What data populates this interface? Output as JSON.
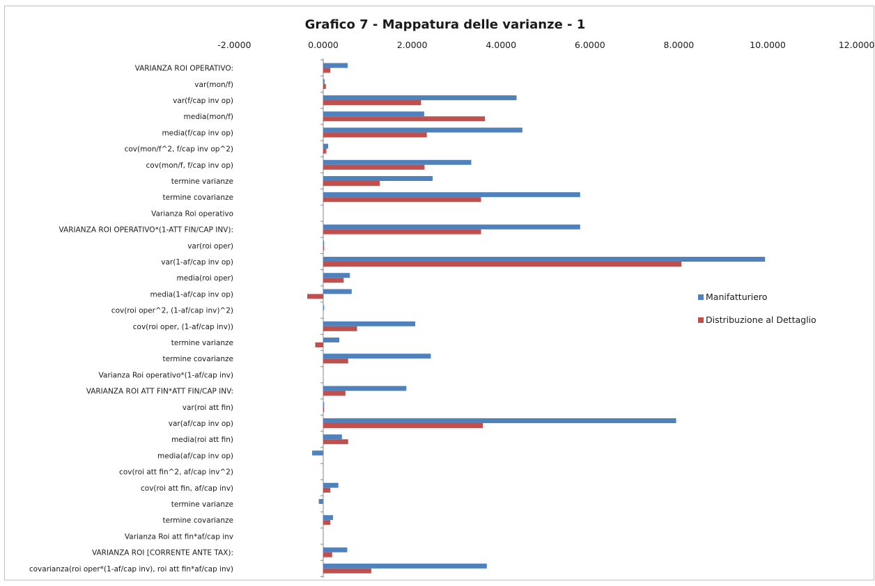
{
  "chart_data": {
    "type": "bar",
    "orientation": "horizontal",
    "title": "Grafico 7 - Mappatura delle varianze - 1",
    "xlim": [
      -2,
      12
    ],
    "x_ticks": [
      "-2.0000",
      "0.0000",
      "2.0000",
      "4.0000",
      "6.0000",
      "8.0000",
      "10.0000",
      "12.0000"
    ],
    "x_tick_values": [
      -2,
      0,
      2,
      4,
      6,
      8,
      10,
      12
    ],
    "x_axis_position": "top",
    "gridlines": false,
    "legend_position": "right",
    "categories": [
      "VARIANZA ROI OPERATIVO:",
      "var(mon/f)",
      "var(f/cap inv op)",
      "media(mon/f)",
      "media(f/cap inv op)",
      "cov(mon/f^2, f/cap inv op^2)",
      "cov(mon/f, f/cap inv op)",
      "termine varianze",
      "termine covarianze",
      "Varianza Roi operativo",
      "VARIANZA ROI OPERATIVO*(1-ATT FIN/CAP INV):",
      "var(roi oper)",
      "var(1-af/cap inv op)",
      "media(roi oper)",
      "media(1-af/cap inv op)",
      "cov(roi oper^2, (1-af/cap inv)^2)",
      "cov(roi oper, (1-af/cap inv))",
      "termine varianze",
      "termine covarianze",
      "Varianza Roi operativo*(1-af/cap inv)",
      "VARIANZA ROI ATT FIN*ATT FIN/CAP INV:",
      "var(roi att fin)",
      "var(af/cap inv op)",
      "media(roi att fin)",
      "media(af/cap inv op)",
      "cov(roi att fin^2, af/cap inv^2)",
      "cov(roi att fin, af/cap inv)",
      "termine varianze",
      "termine covarianze",
      "Varianza Roi att fin*af/cap inv",
      "VARIANZA ROI [CORRENTE ANTE TAX):",
      "covarianza(roi oper*(1-af/cap inv), roi att fin*af/cap inv)"
    ],
    "series": [
      {
        "name": "Manifatturiero",
        "color": "#4f81bd",
        "values": [
          0.55,
          0.03,
          4.35,
          2.27,
          4.48,
          0.11,
          3.33,
          2.46,
          5.78,
          0,
          5.78,
          0.02,
          9.94,
          0.6,
          0.64,
          0.02,
          2.07,
          0.36,
          2.42,
          0,
          1.87,
          0.02,
          7.94,
          0.42,
          -0.25,
          0,
          0.34,
          -0.1,
          0.22,
          0,
          0.54,
          3.68
        ]
      },
      {
        "name": "Distribuzione al Dettaglio",
        "color": "#c0504d",
        "values": [
          0.16,
          0.06,
          2.2,
          3.64,
          2.33,
          0.07,
          2.28,
          1.27,
          3.55,
          0,
          3.55,
          0.02,
          8.06,
          0.46,
          -0.36,
          0,
          0.76,
          -0.18,
          0.56,
          0,
          0.5,
          0.02,
          3.59,
          0.56,
          0,
          0,
          0.16,
          0,
          0.16,
          0,
          0.2,
          1.08
        ]
      }
    ]
  }
}
